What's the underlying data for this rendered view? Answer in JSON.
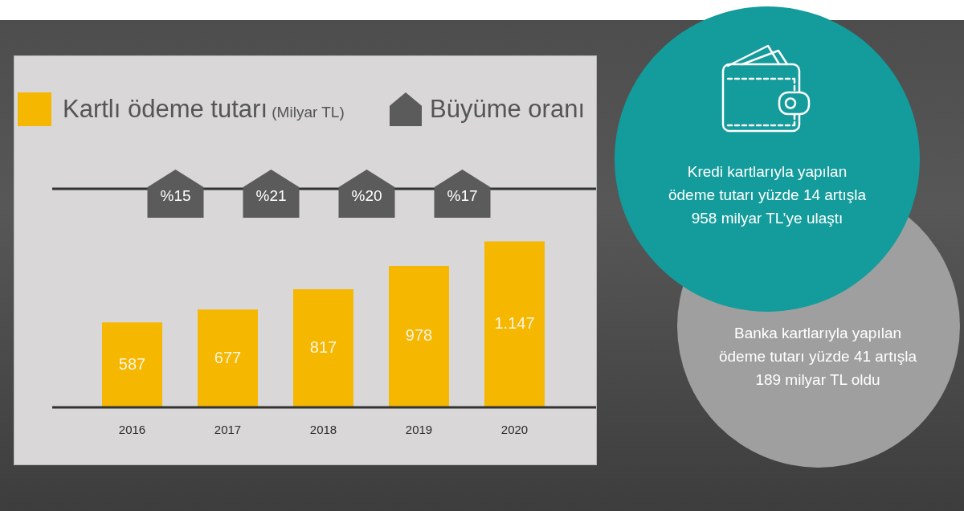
{
  "chart_data": [
    {
      "type": "bar",
      "categories": [
        "2016",
        "2017",
        "2018",
        "2019",
        "2020"
      ],
      "series": [
        {
          "name": "Kartlı ödeme tutarı (Milyar TL)",
          "color": "#f5b700",
          "values": [
            587,
            677,
            817,
            978,
            1147
          ],
          "value_labels": [
            "587",
            "677",
            "817",
            "978",
            "1.147"
          ]
        }
      ],
      "legend": "top left",
      "annotations": [
        "Kredi kartlarıyla yapılan\nödeme tutarı yüzde 14 artışla\n958 milyar TL’ye ulaştı",
        "Banka kartlarıyla yapılan\nödeme tutarı yüzde 41 artışla\n189 milyar TL oldu"
      ]
    },
    {
      "type": "other",
      "categories": [
        null,
        null,
        null,
        null
      ],
      "series": [
        {
          "name": "Büyüme oranı",
          "color": "#5b5b5b",
          "values": [
            15,
            21,
            20,
            17
          ],
          "value_labels": [
            "%15",
            "%21",
            "%20",
            "%17"
          ]
        }
      ],
      "legend": "top right"
    }
  ]
}
